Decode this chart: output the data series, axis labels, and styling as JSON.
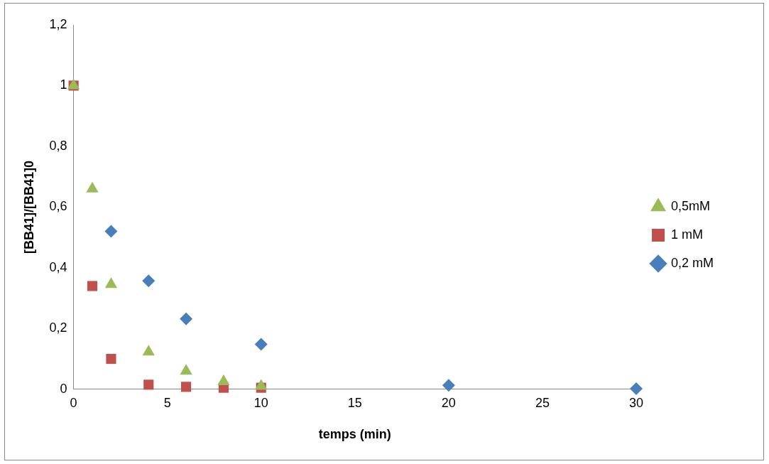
{
  "chart_data": {
    "type": "scatter",
    "xlabel": "temps (min)",
    "ylabel": "[BB41]/[BB41]0",
    "xlim": [
      0,
      30
    ],
    "xticks": [
      0,
      5,
      10,
      15,
      20,
      25,
      30
    ],
    "ylim": [
      0,
      1.2
    ],
    "yticks": [
      {
        "value": 0,
        "label": "0"
      },
      {
        "value": 0.2,
        "label": "0,2"
      },
      {
        "value": 0.4,
        "label": "0,4"
      },
      {
        "value": 0.6,
        "label": "0,6"
      },
      {
        "value": 0.8,
        "label": "0,8"
      },
      {
        "value": 1,
        "label": "1"
      },
      {
        "value": 1.2,
        "label": "1,2"
      }
    ],
    "grid": false,
    "legend": "right",
    "series": [
      {
        "name": "0,2 mM",
        "color": "#4a7ebb",
        "marker": "diamond",
        "x": [
          2,
          4,
          6,
          10,
          20,
          30
        ],
        "values": [
          0.52,
          0.357,
          0.232,
          0.148,
          0.013,
          0.002
        ]
      },
      {
        "name": "1 mM",
        "color": "#c0504d",
        "marker": "square",
        "x": [
          0,
          1,
          2,
          4,
          6,
          8,
          10
        ],
        "values": [
          1,
          0.34,
          0.1,
          0.015,
          0.008,
          0.005,
          0.005
        ]
      },
      {
        "name": "0,5mM",
        "color": "#9bbb59",
        "marker": "triangle",
        "x": [
          0,
          1,
          2,
          4,
          6,
          8,
          10
        ],
        "values": [
          1,
          0.66,
          0.345,
          0.123,
          0.06,
          0.025,
          0.01
        ]
      }
    ]
  }
}
